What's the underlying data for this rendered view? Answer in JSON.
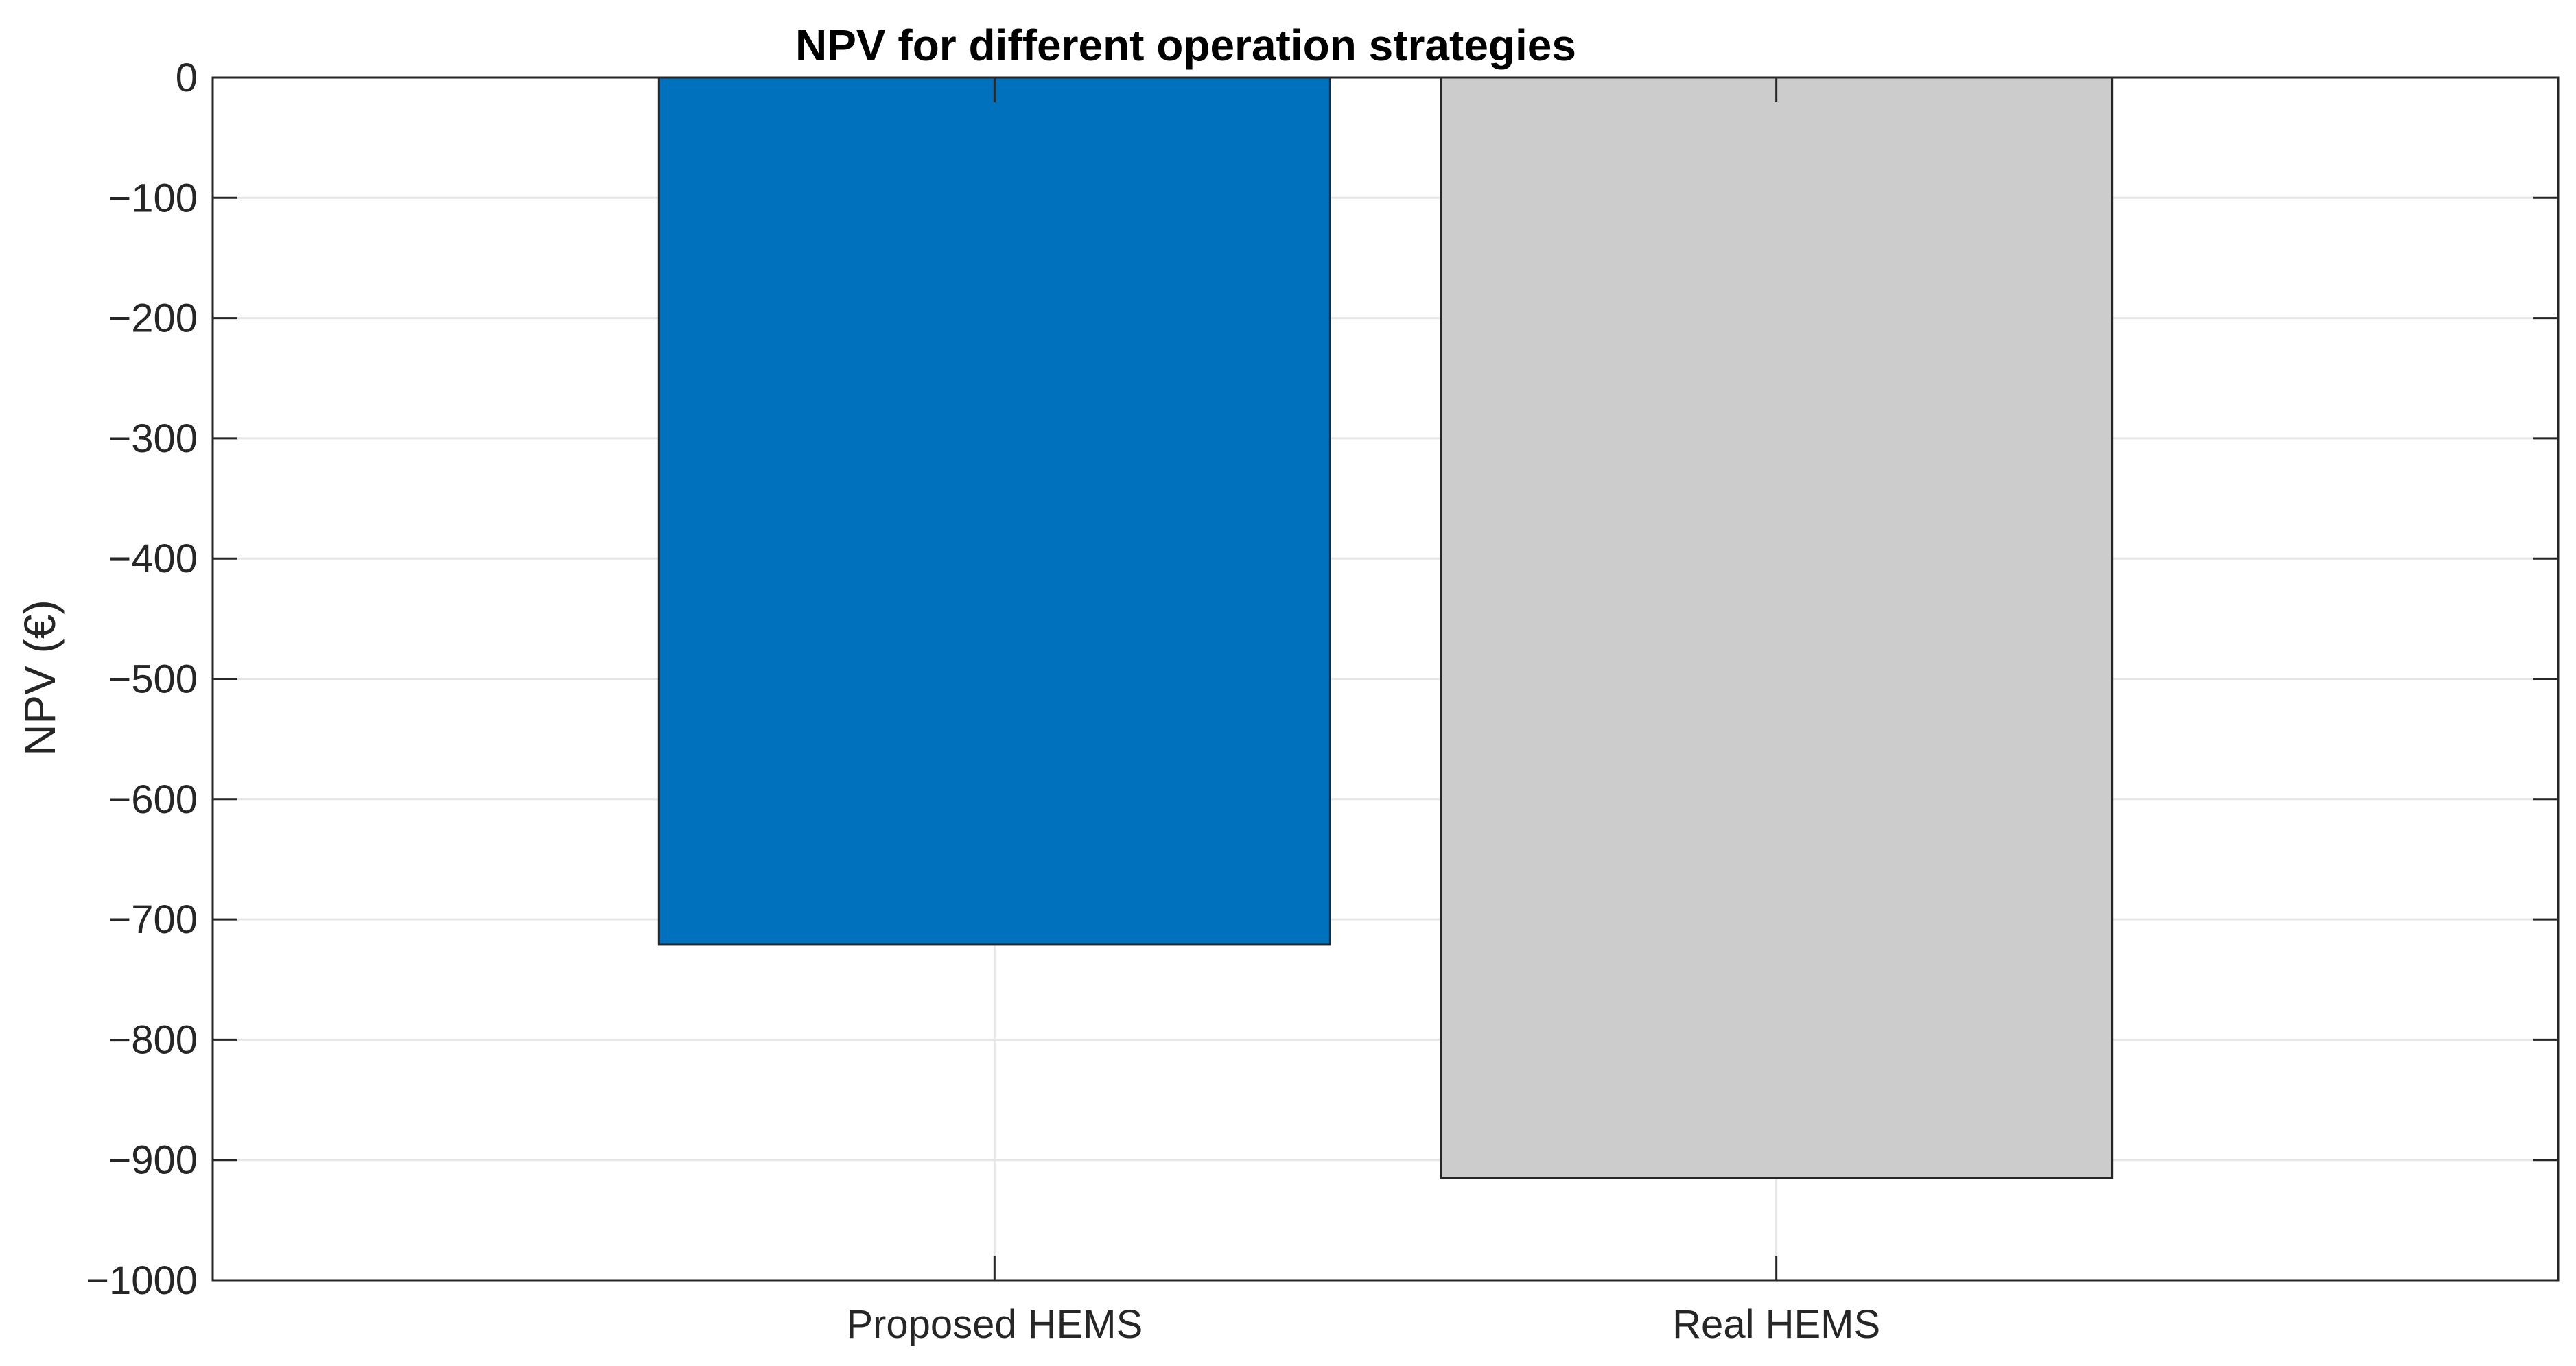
{
  "chart_data": {
    "type": "bar",
    "title": "NPV for different operation strategies",
    "xlabel": "",
    "ylabel": "NPV (€)",
    "categories": [
      "Proposed HEMS",
      "Real HEMS"
    ],
    "values": [
      -721,
      -915
    ],
    "bar_colors": [
      "#0072BD",
      "#CCCCCC"
    ],
    "ylim": [
      -1000,
      0
    ],
    "yticks": [
      0,
      -100,
      -200,
      -300,
      -400,
      -500,
      -600,
      -700,
      -800,
      -900,
      -1000
    ],
    "ytick_labels": [
      "0",
      "−100",
      "−200",
      "−300",
      "−400",
      "−500",
      "−600",
      "−700",
      "−800",
      "−900",
      "−1000"
    ],
    "grid": true,
    "legend": "none"
  }
}
